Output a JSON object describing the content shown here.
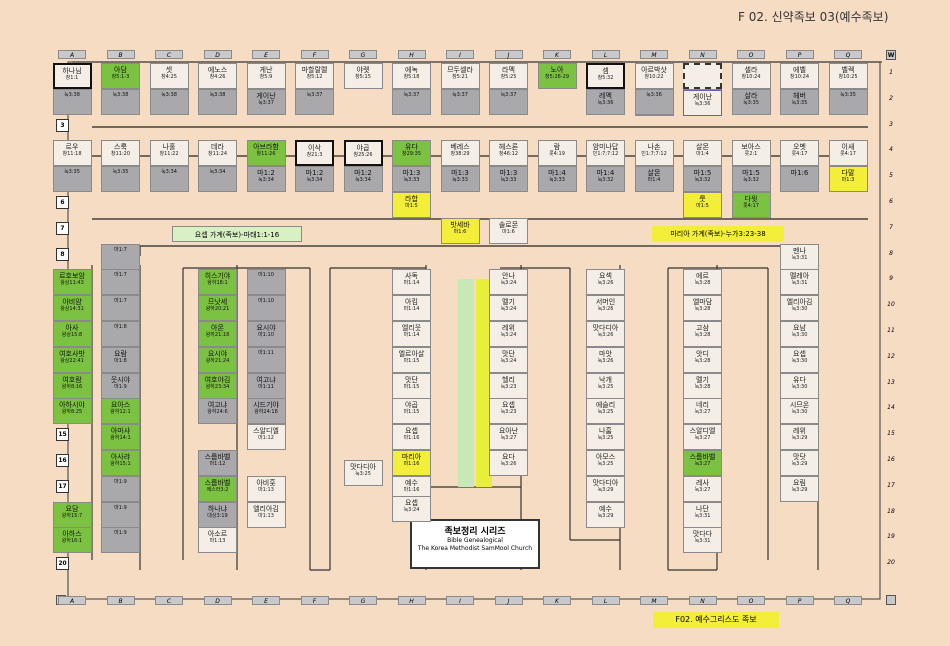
{
  "title": "F 02. 신약족보 03(예수족보)",
  "columns": [
    "A",
    "B",
    "C",
    "D",
    "E",
    "F",
    "G",
    "H",
    "I",
    "J",
    "K",
    "L",
    "M",
    "N",
    "O",
    "P",
    "Q"
  ],
  "row_numbers": [
    "1",
    "2",
    "3",
    "4",
    "5",
    "6",
    "7",
    "8",
    "9",
    "10",
    "11",
    "12",
    "13",
    "14",
    "15",
    "16",
    "17",
    "18",
    "19",
    "20"
  ],
  "banners": {
    "left": "요셉 가계(족보)-마태1:1-16",
    "right": "마리아 가계(족보)-누가3:23-38",
    "corner_w": "W",
    "corner_l": "L"
  },
  "series": {
    "title": "족보정리 시리즈",
    "sub1": "Bible Genealogical",
    "sub2": "The Korea Methodist SamMool Church"
  },
  "footer": "F02. 예수그리스도 족보",
  "nodes": [
    {
      "name": "하나님",
      "ref": "창1:1",
      "style": "bold"
    },
    {
      "name": "아담",
      "ref": "창5:1-3",
      "style": "green"
    },
    {
      "name": "셋",
      "ref": "창4:25",
      "style": ""
    },
    {
      "name": "에노스",
      "ref": "창4:26",
      "style": ""
    },
    {
      "name": "게난",
      "ref": "창5:9",
      "style": ""
    },
    {
      "name": "마할랄렐",
      "ref": "창5:12",
      "style": ""
    },
    {
      "name": "야렛",
      "ref": "창5:15",
      "style": ""
    },
    {
      "name": "에녹",
      "ref": "창5:18",
      "style": ""
    },
    {
      "name": "므두셀라",
      "ref": "창5:21",
      "style": ""
    },
    {
      "name": "라멕",
      "ref": "창5:25",
      "style": ""
    },
    {
      "name": "노아",
      "ref": "창5:28-29",
      "style": "green"
    },
    {
      "name": "셈",
      "ref": "창5:32",
      "style": "bold"
    },
    {
      "name": "아르박삿",
      "ref": "창10:22",
      "style": ""
    },
    {
      "name": "",
      "ref": "",
      "style": "dashed"
    },
    {
      "name": "셀라",
      "ref": "창10:24",
      "style": ""
    },
    {
      "name": "에벨",
      "ref": "창10:24",
      "style": ""
    },
    {
      "name": "벨렉",
      "ref": "창10:25",
      "style": ""
    },
    {
      "name": "",
      "ref": "눅3:38",
      "style": "gray"
    },
    {
      "name": "",
      "ref": "눅3:38",
      "style": "gray"
    },
    {
      "name": "",
      "ref": "눅3:38",
      "style": "gray"
    },
    {
      "name": "",
      "ref": "눅3:38",
      "style": "gray"
    },
    {
      "name": "게이난",
      "ref": "눅3:37",
      "style": "gray"
    },
    {
      "name": "",
      "ref": "눅3:37",
      "style": "gray"
    },
    {
      "name": "",
      "ref": "눅3:37",
      "style": "gray"
    },
    {
      "name": "",
      "ref": "눅3:37",
      "style": "gray"
    },
    {
      "name": "",
      "ref": "눅3:37",
      "style": "gray"
    },
    {
      "name": "레멕",
      "ref": "눅3:36",
      "style": "gray"
    },
    {
      "name": "",
      "ref": "눅3:36",
      "style": "gray"
    },
    {
      "name": "",
      "ref": "눅3:36",
      "style": "gray"
    },
    {
      "name": "아르박",
      "ref": "눅3:36",
      "style": "gray"
    },
    {
      "name": "게이난",
      "ref": "눅3:36",
      "style": "blue"
    },
    {
      "name": "살라",
      "ref": "눅3:35",
      "style": "gray"
    },
    {
      "name": "헤버",
      "ref": "눅3:35",
      "style": "gray"
    },
    {
      "name": "",
      "ref": "눅3:35",
      "style": "gray"
    },
    {
      "name": "르우",
      "ref": "창11:18",
      "style": ""
    },
    {
      "name": "스룩",
      "ref": "창11:20",
      "style": ""
    },
    {
      "name": "나홀",
      "ref": "창11:22",
      "style": ""
    },
    {
      "name": "데라",
      "ref": "창11:24",
      "style": ""
    },
    {
      "name": "아브라함",
      "ref": "창11:26",
      "style": "green"
    },
    {
      "name": "이삭",
      "ref": "창21:3",
      "style": "bold"
    },
    {
      "name": "야곱",
      "ref": "창25:26",
      "style": "bold"
    },
    {
      "name": "유다",
      "ref": "창29:35",
      "style": "green"
    },
    {
      "name": "베레스",
      "ref": "창38:29",
      "style": ""
    },
    {
      "name": "헤스론",
      "ref": "창46:12",
      "style": ""
    },
    {
      "name": "람",
      "ref": "룻4:19",
      "style": ""
    },
    {
      "name": "암미나답",
      "ref": "민1:7;7:12",
      "style": ""
    },
    {
      "name": "나손",
      "ref": "민1:7;7:12",
      "style": ""
    },
    {
      "name": "살몬",
      "ref": "마1:4",
      "style": ""
    },
    {
      "name": "보아스",
      "ref": "룻2:1",
      "style": ""
    },
    {
      "name": "오벳",
      "ref": "룻4:17",
      "style": ""
    },
    {
      "name": "이새",
      "ref": "룻4:17",
      "style": ""
    },
    {
      "name": "",
      "ref": "눅3:35",
      "style": "gray"
    },
    {
      "name": "",
      "ref": "눅3:35",
      "style": "gray"
    },
    {
      "name": "",
      "ref": "눅3:34",
      "style": "gray"
    },
    {
      "name": "",
      "ref": "눅3:34",
      "style": "gray"
    },
    {
      "name": "마1:2",
      "ref": "눅3:34",
      "style": "gray"
    },
    {
      "name": "마1:2",
      "ref": "눅3:34",
      "style": "gray"
    },
    {
      "name": "마1:2",
      "ref": "눅3:34",
      "style": "gray"
    },
    {
      "name": "마1:3",
      "ref": "눅3:33",
      "style": "gray"
    },
    {
      "name": "마1:3",
      "ref": "눅3:33",
      "style": "gray"
    },
    {
      "name": "마1:3",
      "ref": "눅3:33",
      "style": "gray"
    },
    {
      "name": "마1:4",
      "ref": "눅3:33",
      "style": "gray"
    },
    {
      "name": "마1:4",
      "ref": "눅3:32",
      "style": "gray"
    },
    {
      "name": "살몬",
      "ref": "마1:4",
      "style": "gray"
    },
    {
      "name": "마1:5",
      "ref": "눅3:32",
      "style": "gray"
    },
    {
      "name": "마1:5",
      "ref": "눅3:32",
      "style": "gray"
    },
    {
      "name": "마1:6",
      "ref": "",
      "style": "gray"
    },
    {
      "name": "다말",
      "ref": "마1:3",
      "style": "yellow"
    },
    {
      "name": "라합",
      "ref": "마1:5",
      "style": "yellow"
    },
    {
      "name": "룻",
      "ref": "마1:5",
      "style": "yellow"
    },
    {
      "name": "다윗",
      "ref": "룻4:17",
      "style": "green"
    },
    {
      "name": "밧세바",
      "ref": "마1:6",
      "style": "yellow"
    },
    {
      "name": "솔로몬",
      "ref": "마1:6",
      "style": ""
    },
    {
      "name": "",
      "ref": "마1:7",
      "style": "gray"
    },
    {
      "name": "르호보암",
      "ref": "왕상11:43",
      "style": "green"
    },
    {
      "name": "",
      "ref": "마1:7",
      "style": "gray"
    },
    {
      "name": "아비얌",
      "ref": "왕상14:31",
      "style": "green"
    },
    {
      "name": "",
      "ref": "마1:7",
      "style": "gray"
    },
    {
      "name": "아사",
      "ref": "왕상15:8",
      "style": "green"
    },
    {
      "name": "",
      "ref": "마1:8",
      "style": "gray"
    },
    {
      "name": "여호사밧",
      "ref": "왕상22:41",
      "style": "green"
    },
    {
      "name": "요람",
      "ref": "마1:8",
      "style": "gray"
    },
    {
      "name": "여호람",
      "ref": "왕하8:16",
      "style": "green"
    },
    {
      "name": "웃시야",
      "ref": "마1:9",
      "style": "gray"
    },
    {
      "name": "아하시야",
      "ref": "왕하8:25",
      "style": "green"
    },
    {
      "name": "요아스",
      "ref": "왕하12:1",
      "style": "green"
    },
    {
      "name": "아마샤",
      "ref": "왕하14:1",
      "style": "green"
    },
    {
      "name": "아사랴",
      "ref": "왕하15:1",
      "style": "green"
    },
    {
      "name": "",
      "ref": "마1:9",
      "style": "gray"
    },
    {
      "name": "요담",
      "ref": "왕하15:7",
      "style": "green"
    },
    {
      "name": "",
      "ref": "마1:9",
      "style": "gray"
    },
    {
      "name": "아하스",
      "ref": "왕하16:1",
      "style": "green"
    },
    {
      "name": "",
      "ref": "마1:9",
      "style": "gray"
    },
    {
      "name": "히스기야",
      "ref": "왕하18:1",
      "style": "green"
    },
    {
      "name": "",
      "ref": "마1:10",
      "style": "gray"
    },
    {
      "name": "므낫세",
      "ref": "왕하20:21",
      "style": "green"
    },
    {
      "name": "",
      "ref": "마1:10",
      "style": "gray"
    },
    {
      "name": "아몬",
      "ref": "왕하21:18",
      "style": "green"
    },
    {
      "name": "요시야",
      "ref": "마1:10",
      "style": "gray"
    },
    {
      "name": "요시야",
      "ref": "왕하21:24",
      "style": "green"
    },
    {
      "name": "",
      "ref": "마1:11",
      "style": "gray"
    },
    {
      "name": "여호야김",
      "ref": "왕하23:34",
      "style": "green"
    },
    {
      "name": "여고냐",
      "ref": "마1:11",
      "style": "gray"
    },
    {
      "name": "여고냐",
      "ref": "왕하24:6",
      "style": "gray"
    },
    {
      "name": "시드기야",
      "ref": "왕하24:18",
      "style": "gray"
    },
    {
      "name": "스알디엘",
      "ref": "마1:12",
      "style": ""
    },
    {
      "name": "스룹바벨",
      "ref": "마1:12",
      "style": "gray"
    },
    {
      "name": "스룹바벨",
      "ref": "에스라3:2",
      "style": "green"
    },
    {
      "name": "아비훗",
      "ref": "마1:13",
      "style": ""
    },
    {
      "name": "하나냐",
      "ref": "대상3:19",
      "style": "gray"
    },
    {
      "name": "엘리아김",
      "ref": "마1:13",
      "style": ""
    },
    {
      "name": "아소르",
      "ref": "마1:13",
      "style": ""
    },
    {
      "name": "사독",
      "ref": "마1:14",
      "style": ""
    },
    {
      "name": "아킴",
      "ref": "마1:14",
      "style": ""
    },
    {
      "name": "엘리웃",
      "ref": "마1:14",
      "style": ""
    },
    {
      "name": "엘르아살",
      "ref": "마1:15",
      "style": ""
    },
    {
      "name": "맛단",
      "ref": "마1:15",
      "style": ""
    },
    {
      "name": "야곱",
      "ref": "마1:15",
      "style": ""
    },
    {
      "name": "요셉",
      "ref": "마1:16",
      "style": ""
    },
    {
      "name": "마리아",
      "ref": "마1:16",
      "style": "yellow"
    },
    {
      "name": "예수",
      "ref": "마1:16",
      "style": ""
    },
    {
      "name": "맛다디아",
      "ref": "눅3:25",
      "style": ""
    },
    {
      "name": "요셉",
      "ref": "눅3:24",
      "style": ""
    },
    {
      "name": "안나",
      "ref": "눅3:24",
      "style": ""
    },
    {
      "name": "멜기",
      "ref": "눅3:24",
      "style": ""
    },
    {
      "name": "레위",
      "ref": "눅3:24",
      "style": ""
    },
    {
      "name": "맛단",
      "ref": "눅3:24",
      "style": ""
    },
    {
      "name": "헬리",
      "ref": "눅3:23",
      "style": ""
    },
    {
      "name": "요셉",
      "ref": "눅3:23",
      "style": ""
    },
    {
      "name": "요아난",
      "ref": "눅3:27",
      "style": ""
    },
    {
      "name": "요다",
      "ref": "눅3:26",
      "style": ""
    },
    {
      "name": "요섹",
      "ref": "눅3:26",
      "style": ""
    },
    {
      "name": "서머인",
      "ref": "눅3:26",
      "style": ""
    },
    {
      "name": "맛다디아",
      "ref": "눅3:26",
      "style": ""
    },
    {
      "name": "마앗",
      "ref": "눅3:26",
      "style": ""
    },
    {
      "name": "낙개",
      "ref": "눅3:25",
      "style": ""
    },
    {
      "name": "에슬리",
      "ref": "눅3:25",
      "style": ""
    },
    {
      "name": "나훔",
      "ref": "눅3:25",
      "style": ""
    },
    {
      "name": "아모스",
      "ref": "눅3:25",
      "style": ""
    },
    {
      "name": "맛다디아",
      "ref": "눅3:29",
      "style": ""
    },
    {
      "name": "예수",
      "ref": "눅3:29",
      "style": ""
    },
    {
      "name": "에르",
      "ref": "눅3:28",
      "style": ""
    },
    {
      "name": "엘마담",
      "ref": "눅3:28",
      "style": ""
    },
    {
      "name": "고삼",
      "ref": "눅3:28",
      "style": ""
    },
    {
      "name": "앗디",
      "ref": "눅3:28",
      "style": ""
    },
    {
      "name": "멜기",
      "ref": "눅3:28",
      "style": ""
    },
    {
      "name": "네리",
      "ref": "눅3:27",
      "style": ""
    },
    {
      "name": "스알디엘",
      "ref": "눅3:27",
      "style": ""
    },
    {
      "name": "스룹바벨",
      "ref": "눅3:27",
      "style": "green"
    },
    {
      "name": "레사",
      "ref": "눅3:27",
      "style": ""
    },
    {
      "name": "나단",
      "ref": "눅3:31",
      "style": ""
    },
    {
      "name": "맛다다",
      "ref": "눅3:31",
      "style": ""
    },
    {
      "name": "멘나",
      "ref": "눅3:31",
      "style": ""
    },
    {
      "name": "멜레아",
      "ref": "눅3:31",
      "style": ""
    },
    {
      "name": "엘리아김",
      "ref": "눅3:30",
      "style": ""
    },
    {
      "name": "요남",
      "ref": "눅3:30",
      "style": ""
    },
    {
      "name": "요셉",
      "ref": "눅3:30",
      "style": ""
    },
    {
      "name": "유다",
      "ref": "눅3:30",
      "style": ""
    },
    {
      "name": "시므온",
      "ref": "눅3:30",
      "style": ""
    },
    {
      "name": "레위",
      "ref": "눅3:29",
      "style": ""
    },
    {
      "name": "맛닷",
      "ref": "눅3:29",
      "style": ""
    },
    {
      "name": "요림",
      "ref": "눅3:29",
      "style": ""
    }
  ]
}
